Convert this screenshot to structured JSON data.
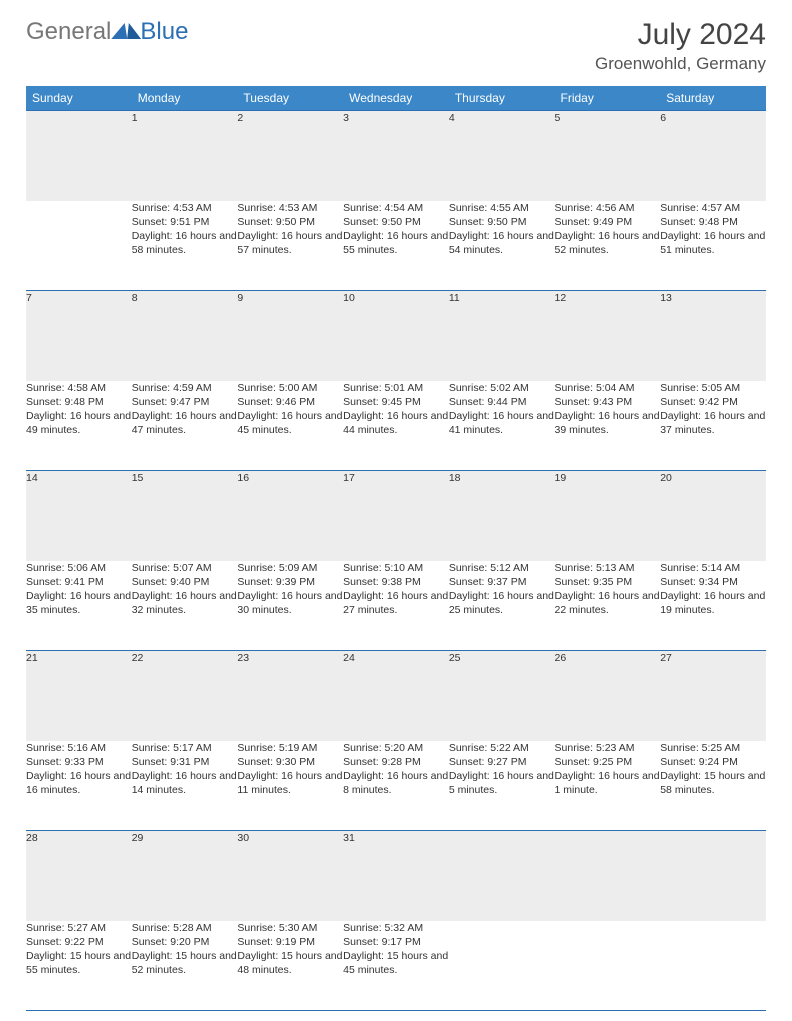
{
  "logo": {
    "text1": "General",
    "text2": "Blue"
  },
  "title": "July 2024",
  "location": "Groenwohld, Germany",
  "colors": {
    "header_bg": "#3b87c8",
    "rule": "#2d6fb5",
    "daynum_bg": "#ededed",
    "page_bg": "#ffffff"
  },
  "weekdays": [
    "Sunday",
    "Monday",
    "Tuesday",
    "Wednesday",
    "Thursday",
    "Friday",
    "Saturday"
  ],
  "weeks": [
    [
      {
        "day": "",
        "lines": []
      },
      {
        "day": "1",
        "lines": [
          "Sunrise: 4:53 AM",
          "Sunset: 9:51 PM",
          "Daylight: 16 hours and 58 minutes."
        ]
      },
      {
        "day": "2",
        "lines": [
          "Sunrise: 4:53 AM",
          "Sunset: 9:50 PM",
          "Daylight: 16 hours and 57 minutes."
        ]
      },
      {
        "day": "3",
        "lines": [
          "Sunrise: 4:54 AM",
          "Sunset: 9:50 PM",
          "Daylight: 16 hours and 55 minutes."
        ]
      },
      {
        "day": "4",
        "lines": [
          "Sunrise: 4:55 AM",
          "Sunset: 9:50 PM",
          "Daylight: 16 hours and 54 minutes."
        ]
      },
      {
        "day": "5",
        "lines": [
          "Sunrise: 4:56 AM",
          "Sunset: 9:49 PM",
          "Daylight: 16 hours and 52 minutes."
        ]
      },
      {
        "day": "6",
        "lines": [
          "Sunrise: 4:57 AM",
          "Sunset: 9:48 PM",
          "Daylight: 16 hours and 51 minutes."
        ]
      }
    ],
    [
      {
        "day": "7",
        "lines": [
          "Sunrise: 4:58 AM",
          "Sunset: 9:48 PM",
          "Daylight: 16 hours and 49 minutes."
        ]
      },
      {
        "day": "8",
        "lines": [
          "Sunrise: 4:59 AM",
          "Sunset: 9:47 PM",
          "Daylight: 16 hours and 47 minutes."
        ]
      },
      {
        "day": "9",
        "lines": [
          "Sunrise: 5:00 AM",
          "Sunset: 9:46 PM",
          "Daylight: 16 hours and 45 minutes."
        ]
      },
      {
        "day": "10",
        "lines": [
          "Sunrise: 5:01 AM",
          "Sunset: 9:45 PM",
          "Daylight: 16 hours and 44 minutes."
        ]
      },
      {
        "day": "11",
        "lines": [
          "Sunrise: 5:02 AM",
          "Sunset: 9:44 PM",
          "Daylight: 16 hours and 41 minutes."
        ]
      },
      {
        "day": "12",
        "lines": [
          "Sunrise: 5:04 AM",
          "Sunset: 9:43 PM",
          "Daylight: 16 hours and 39 minutes."
        ]
      },
      {
        "day": "13",
        "lines": [
          "Sunrise: 5:05 AM",
          "Sunset: 9:42 PM",
          "Daylight: 16 hours and 37 minutes."
        ]
      }
    ],
    [
      {
        "day": "14",
        "lines": [
          "Sunrise: 5:06 AM",
          "Sunset: 9:41 PM",
          "Daylight: 16 hours and 35 minutes."
        ]
      },
      {
        "day": "15",
        "lines": [
          "Sunrise: 5:07 AM",
          "Sunset: 9:40 PM",
          "Daylight: 16 hours and 32 minutes."
        ]
      },
      {
        "day": "16",
        "lines": [
          "Sunrise: 5:09 AM",
          "Sunset: 9:39 PM",
          "Daylight: 16 hours and 30 minutes."
        ]
      },
      {
        "day": "17",
        "lines": [
          "Sunrise: 5:10 AM",
          "Sunset: 9:38 PM",
          "Daylight: 16 hours and 27 minutes."
        ]
      },
      {
        "day": "18",
        "lines": [
          "Sunrise: 5:12 AM",
          "Sunset: 9:37 PM",
          "Daylight: 16 hours and 25 minutes."
        ]
      },
      {
        "day": "19",
        "lines": [
          "Sunrise: 5:13 AM",
          "Sunset: 9:35 PM",
          "Daylight: 16 hours and 22 minutes."
        ]
      },
      {
        "day": "20",
        "lines": [
          "Sunrise: 5:14 AM",
          "Sunset: 9:34 PM",
          "Daylight: 16 hours and 19 minutes."
        ]
      }
    ],
    [
      {
        "day": "21",
        "lines": [
          "Sunrise: 5:16 AM",
          "Sunset: 9:33 PM",
          "Daylight: 16 hours and 16 minutes."
        ]
      },
      {
        "day": "22",
        "lines": [
          "Sunrise: 5:17 AM",
          "Sunset: 9:31 PM",
          "Daylight: 16 hours and 14 minutes."
        ]
      },
      {
        "day": "23",
        "lines": [
          "Sunrise: 5:19 AM",
          "Sunset: 9:30 PM",
          "Daylight: 16 hours and 11 minutes."
        ]
      },
      {
        "day": "24",
        "lines": [
          "Sunrise: 5:20 AM",
          "Sunset: 9:28 PM",
          "Daylight: 16 hours and 8 minutes."
        ]
      },
      {
        "day": "25",
        "lines": [
          "Sunrise: 5:22 AM",
          "Sunset: 9:27 PM",
          "Daylight: 16 hours and 5 minutes."
        ]
      },
      {
        "day": "26",
        "lines": [
          "Sunrise: 5:23 AM",
          "Sunset: 9:25 PM",
          "Daylight: 16 hours and 1 minute."
        ]
      },
      {
        "day": "27",
        "lines": [
          "Sunrise: 5:25 AM",
          "Sunset: 9:24 PM",
          "Daylight: 15 hours and 58 minutes."
        ]
      }
    ],
    [
      {
        "day": "28",
        "lines": [
          "Sunrise: 5:27 AM",
          "Sunset: 9:22 PM",
          "Daylight: 15 hours and 55 minutes."
        ]
      },
      {
        "day": "29",
        "lines": [
          "Sunrise: 5:28 AM",
          "Sunset: 9:20 PM",
          "Daylight: 15 hours and 52 minutes."
        ]
      },
      {
        "day": "30",
        "lines": [
          "Sunrise: 5:30 AM",
          "Sunset: 9:19 PM",
          "Daylight: 15 hours and 48 minutes."
        ]
      },
      {
        "day": "31",
        "lines": [
          "Sunrise: 5:32 AM",
          "Sunset: 9:17 PM",
          "Daylight: 15 hours and 45 minutes."
        ]
      },
      {
        "day": "",
        "lines": []
      },
      {
        "day": "",
        "lines": []
      },
      {
        "day": "",
        "lines": []
      }
    ]
  ]
}
